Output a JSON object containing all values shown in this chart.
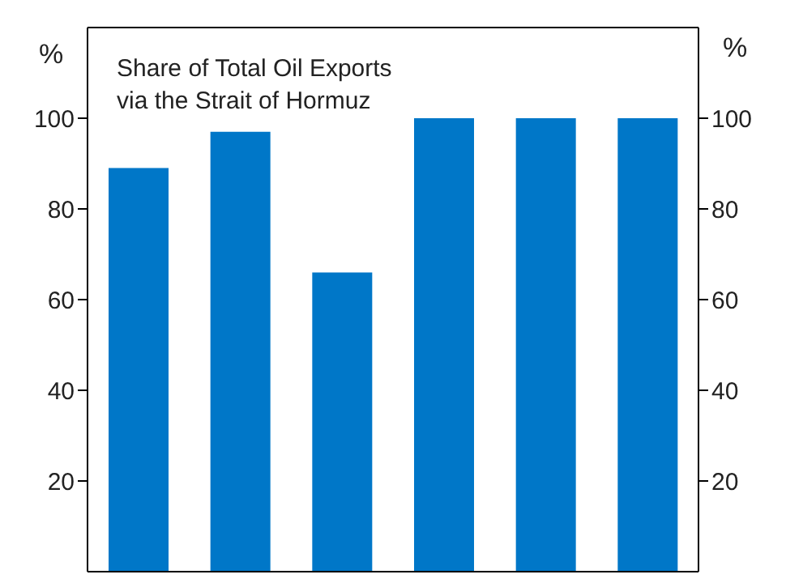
{
  "chart_data": {
    "type": "bar",
    "title": "Share of Total Oil Exports\nvia the Strait of Hormuz",
    "ylabel": "%",
    "y2label": "%",
    "categories": [
      null,
      null,
      null,
      null,
      null,
      null
    ],
    "values": [
      89,
      97,
      66,
      100,
      100,
      100
    ],
    "color": "#0077c8",
    "ylim": [
      0,
      120
    ],
    "yticks": [
      20,
      40,
      60,
      80,
      100
    ],
    "y2lim": [
      0,
      120
    ],
    "y2ticks": [
      20,
      40,
      60,
      80,
      100
    ],
    "tick_labels": "y",
    "grid": false
  }
}
